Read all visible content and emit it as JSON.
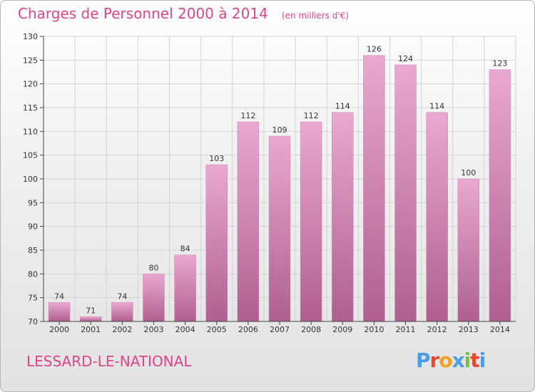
{
  "header": {
    "title": "Charges de Personnel 2000 à 2014",
    "subtitle": "(en milliers d'€)"
  },
  "footer": {
    "commune": "LESSARD-LE-NATIONAL",
    "logo_text": "Proxiti",
    "logo_colors": [
      "#4a9ee8",
      "#e8462e",
      "#f0a21c",
      "#4a9ee8",
      "#7cc242",
      "#e8462e",
      "#4a9ee8"
    ]
  },
  "colors": {
    "title": "#e0448a",
    "bar_top": "#e9a9d0",
    "bar_bottom": "#b05f8f"
  },
  "chart_data": {
    "type": "bar",
    "title": "Charges de Personnel 2000 à 2014",
    "subtitle": "(en milliers d'€)",
    "categories": [
      "2000",
      "2001",
      "2002",
      "2003",
      "2004",
      "2005",
      "2006",
      "2007",
      "2008",
      "2009",
      "2010",
      "2011",
      "2012",
      "2013",
      "2014"
    ],
    "values": [
      74,
      71,
      74,
      80,
      84,
      103,
      112,
      109,
      112,
      114,
      126,
      124,
      114,
      100,
      123
    ],
    "ylim": [
      70,
      130
    ],
    "yticks": [
      70,
      75,
      80,
      85,
      90,
      95,
      100,
      105,
      110,
      115,
      120,
      125,
      130
    ],
    "grid": true,
    "xlabel": "",
    "ylabel": ""
  }
}
